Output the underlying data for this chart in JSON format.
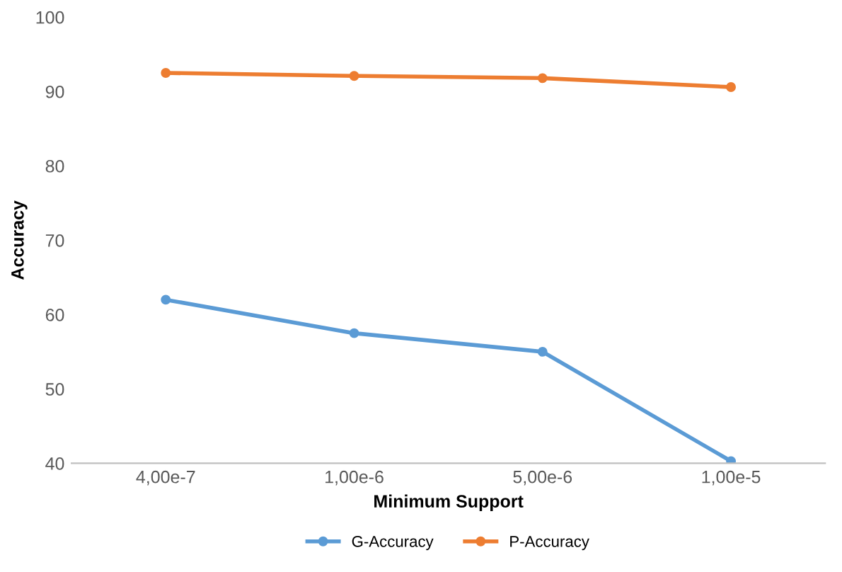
{
  "chart_data": {
    "type": "line",
    "xlabel": "Minimum Support",
    "ylabel": "Accuracy",
    "categories": [
      "4,00e-7",
      "1,00e-6",
      "5,00e-6",
      "1,00e-5"
    ],
    "series": [
      {
        "name": "G-Accuracy",
        "color": "#5b9bd5",
        "values": [
          62.0,
          57.5,
          55.0,
          40.3
        ]
      },
      {
        "name": "P-Accuracy",
        "color": "#ed7d31",
        "values": [
          92.5,
          92.1,
          91.8,
          90.6
        ]
      }
    ],
    "ylim": [
      40,
      100
    ],
    "yticks": [
      40,
      50,
      60,
      70,
      80,
      90,
      100
    ],
    "grid": false,
    "legend": "bottom",
    "marker": "circle",
    "line_style": "solid"
  }
}
